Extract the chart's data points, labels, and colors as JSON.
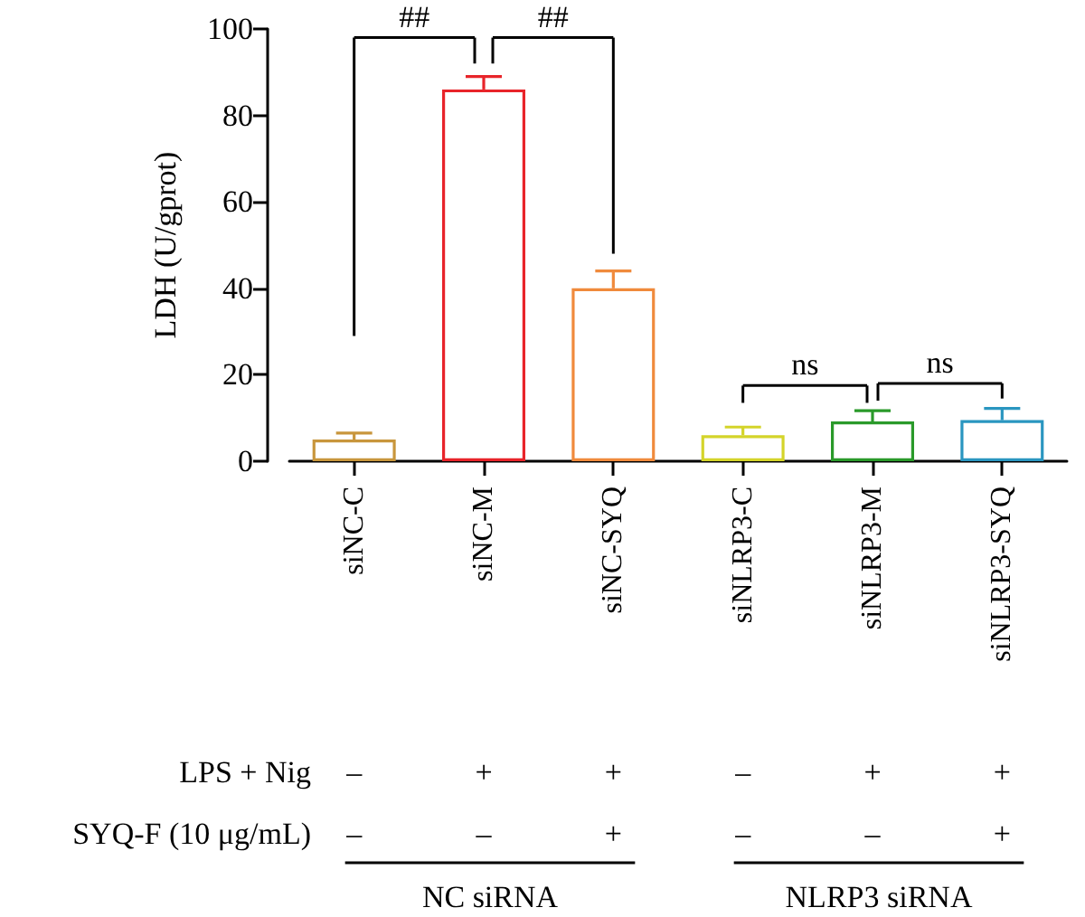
{
  "chart_data": {
    "type": "bar",
    "ylabel": "LDH (U/gprot)",
    "categories": [
      "siNC-C",
      "siNC-M",
      "siNC-SYQ",
      "siNLRP3-C",
      "siNLRP3-M",
      "siNLRP3-SYQ"
    ],
    "values": [
      5,
      86,
      40,
      6,
      9.2,
      9.5
    ],
    "colors": [
      "#c8963c",
      "#e8242a",
      "#f08a3c",
      "#d4d42a",
      "#2a9a2a",
      "#2a96c0"
    ],
    "errors": [
      [
        5,
        6.5
      ],
      [
        86,
        89
      ],
      [
        40,
        44
      ],
      [
        6,
        7.9
      ],
      [
        9.2,
        11.7
      ],
      [
        9.5,
        12.2
      ]
    ],
    "ylim": [
      0,
      100
    ],
    "yticks": [
      0,
      20,
      40,
      60,
      80,
      100
    ],
    "grid": false,
    "annotations": [
      "##",
      "##",
      "ns",
      "ns",
      "LPS + Nig",
      "–",
      "+",
      "+",
      "–",
      "+",
      "+",
      "SYQ-F (10 μg/mL)",
      "–",
      "–",
      "+",
      "–",
      "–",
      "+",
      "NC siRNA",
      "NLRP3 siRNA"
    ]
  }
}
